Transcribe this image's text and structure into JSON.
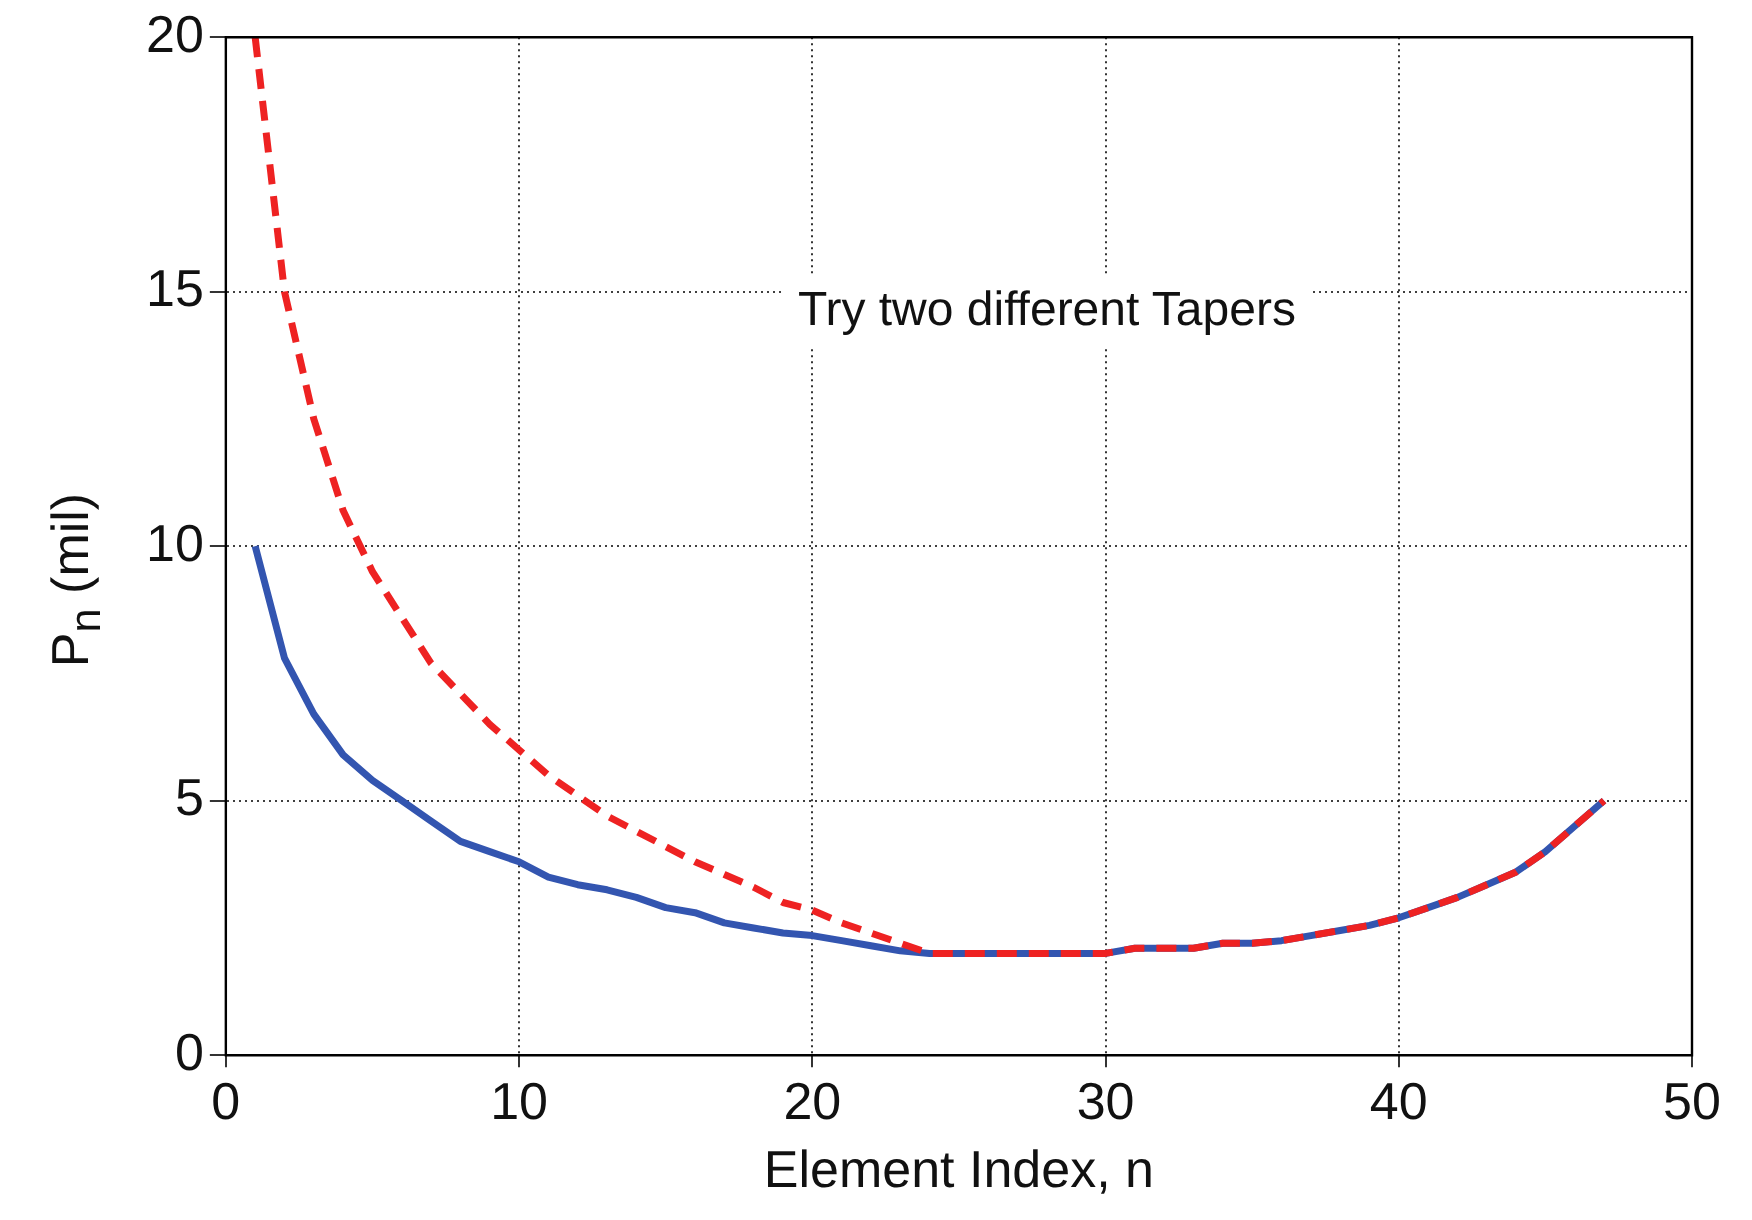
{
  "chart_data": {
    "type": "line",
    "xlabel": "Element Index, n",
    "ylabel": "P$_{n}$ (mil)",
    "x": [
      1,
      2,
      3,
      4,
      5,
      6,
      7,
      8,
      9,
      10,
      11,
      12,
      13,
      14,
      15,
      16,
      17,
      18,
      19,
      20,
      21,
      22,
      23,
      24,
      25,
      26,
      27,
      28,
      29,
      30,
      31,
      32,
      33,
      34,
      35,
      36,
      37,
      38,
      39,
      40,
      41,
      42,
      43,
      44,
      45,
      46,
      47
    ],
    "series": [
      {
        "color": "#3355b0",
        "line_style": "solid",
        "values": [
          10,
          7.8,
          6.7,
          5.9,
          5.4,
          5.0,
          4.6,
          4.2,
          4.0,
          3.8,
          3.5,
          3.35,
          3.25,
          3.1,
          2.9,
          2.8,
          2.6,
          2.5,
          2.4,
          2.35,
          2.25,
          2.15,
          2.05,
          2.0,
          2.0,
          2.0,
          2.0,
          2.0,
          2.0,
          2.0,
          2.1,
          2.1,
          2.1,
          2.2,
          2.2,
          2.25,
          2.35,
          2.45,
          2.55,
          2.7,
          2.9,
          3.1,
          3.35,
          3.6,
          4.0,
          4.5,
          5.0
        ]
      },
      {
        "color": "#ee2222",
        "line_style": "dashed",
        "values": [
          20,
          15,
          12.5,
          10.7,
          9.5,
          8.6,
          7.7,
          7.1,
          6.5,
          6.0,
          5.5,
          5.1,
          4.7,
          4.4,
          4.1,
          3.8,
          3.55,
          3.3,
          3.0,
          2.85,
          2.6,
          2.4,
          2.2,
          2.0,
          2.0,
          2.0,
          2.0,
          2.0,
          2.0,
          2.0,
          2.1,
          2.1,
          2.1,
          2.2,
          2.2,
          2.25,
          2.35,
          2.45,
          2.55,
          2.7,
          2.9,
          3.1,
          3.35,
          3.6,
          4.0,
          4.5,
          5.0
        ]
      }
    ],
    "annotations": [
      "Try two different Tapers"
    ],
    "xlim": [
      0,
      50
    ],
    "xticks": [
      0,
      10,
      20,
      30,
      40,
      50
    ],
    "ylim": [
      0,
      20
    ],
    "yticks": [
      0,
      5,
      10,
      15,
      20
    ],
    "grid": true,
    "legend": false,
    "marker": "none"
  }
}
